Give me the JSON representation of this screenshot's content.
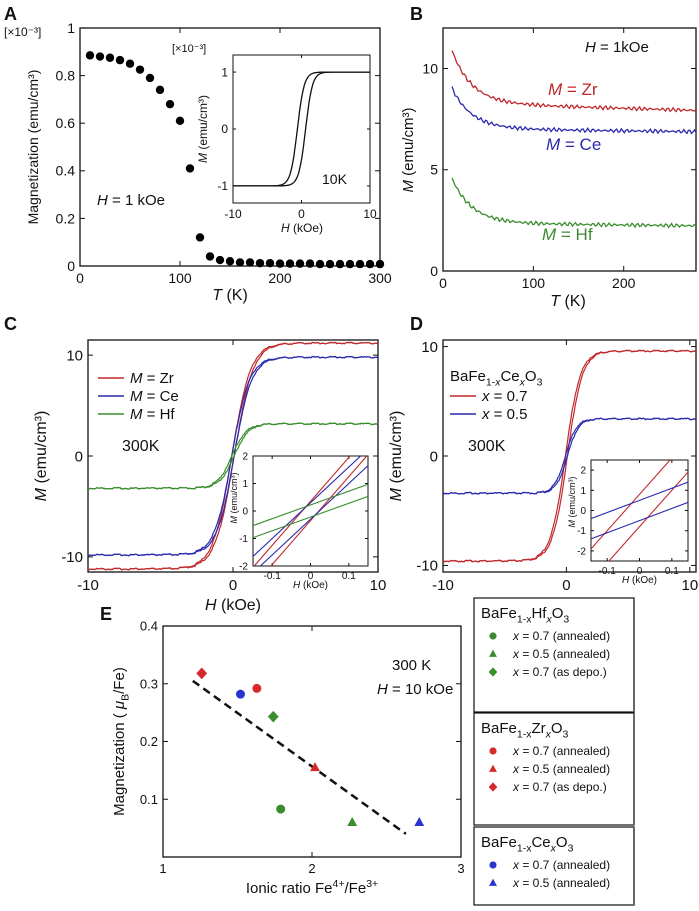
{
  "chart_data": [
    {
      "panel": "A",
      "type": "scatter",
      "scale_label": "[×10⁻³]",
      "ylabel": "Magnetization (emu/cm³)",
      "xlabel_var": "T",
      "xlabel_unit": " (K)",
      "xlim": [
        0,
        300
      ],
      "ylim": [
        0,
        1.0
      ],
      "xticks": [
        "0",
        "100",
        "200",
        "300"
      ],
      "xtick_vals": [
        0,
        100,
        200,
        300
      ],
      "yticks": [
        "0",
        "0.2",
        "0.4",
        "0.6",
        "0.8",
        "1"
      ],
      "ytick_vals": [
        0,
        0.2,
        0.4,
        0.6,
        0.8,
        1.0
      ],
      "annotation_var": "H",
      "annotation_rest": " = 1 kOe",
      "series": [
        {
          "name": "M(T)",
          "color": "#000000",
          "x": [
            10,
            20,
            30,
            40,
            50,
            60,
            70,
            80,
            90,
            100,
            110,
            120,
            130,
            140,
            150,
            160,
            170,
            180,
            190,
            200,
            210,
            220,
            230,
            240,
            250,
            260,
            270,
            280,
            290,
            300
          ],
          "y": [
            0.885,
            0.88,
            0.875,
            0.865,
            0.85,
            0.825,
            0.79,
            0.74,
            0.68,
            0.61,
            0.41,
            0.12,
            0.04,
            0.025,
            0.02,
            0.015,
            0.015,
            0.012,
            0.012,
            0.01,
            0.01,
            0.01,
            0.01,
            0.008,
            0.008,
            0.008,
            0.008,
            0.008,
            0.008,
            0.008
          ]
        }
      ],
      "inset": {
        "type": "line",
        "scale_label": "[×10⁻³]",
        "xlim": [
          -10,
          10
        ],
        "ylim": [
          -1.3,
          1.3
        ],
        "xticks": [
          "-10",
          "0",
          "10"
        ],
        "xtick_vals": [
          -10,
          0,
          10
        ],
        "yticks": [
          "-1",
          "0",
          "1"
        ],
        "ytick_vals": [
          -1,
          0,
          1
        ],
        "ylabel_var": "M",
        "ylabel_unit": " (emu/cm³)",
        "xlabel_var": "H",
        "xlabel_unit": " (kOe)",
        "annotation": "10K",
        "Ms": 1.0,
        "Hc": 0.6,
        "width": 1.0
      }
    },
    {
      "panel": "B",
      "type": "line",
      "ylabel_var": "M",
      "ylabel_unit": " (emu/cm³)",
      "xlabel_var": "T",
      "xlabel_unit": " (K)",
      "xlim": [
        0,
        280
      ],
      "ylim": [
        0,
        12
      ],
      "xticks": [
        "0",
        "100",
        "200"
      ],
      "xtick_vals": [
        0,
        100,
        200
      ],
      "yticks": [
        "0",
        "5",
        "10"
      ],
      "ytick_vals": [
        0,
        5,
        10
      ],
      "annotation_var": "H",
      "annotation_rest": " = 1kOe",
      "series": [
        {
          "name": "M = Zr",
          "label_var": "M",
          "label_rest": " = Zr",
          "color": "#c0282a",
          "base": 8.1,
          "amp": 2.6
        },
        {
          "name": "M = Ce",
          "label_var": "M",
          "label_rest": " = Ce",
          "color": "#2a2aaf",
          "base": 6.95,
          "amp": 2.0
        },
        {
          "name": "M = Hf",
          "label_var": "M",
          "label_rest": " = Hf",
          "color": "#3a8c2e",
          "base": 2.3,
          "amp": 2.2
        }
      ]
    },
    {
      "panel": "C",
      "type": "line",
      "ylabel_var": "M",
      "ylabel_unit": " (emu/cm³)",
      "xlabel_var": "H",
      "xlabel_unit": " (kOe)",
      "xlim": [
        -10,
        10
      ],
      "ylim": [
        -11.5,
        11.5
      ],
      "xticks": [
        "-10",
        "0",
        "10"
      ],
      "xtick_vals": [
        -10,
        0,
        10
      ],
      "yticks": [
        "-10",
        "0",
        "10"
      ],
      "ytick_vals": [
        -10,
        0,
        10
      ],
      "annotation": "300K",
      "legend": [
        {
          "var": "M",
          "rest": " = Zr",
          "color": "#c0282a"
        },
        {
          "var": "M",
          "rest": " = Ce",
          "color": "#2a2aaf"
        },
        {
          "var": "M",
          "rest": " = Hf",
          "color": "#3a8c2e"
        }
      ],
      "series": [
        {
          "name": "M = Zr",
          "color": "#c0282a",
          "Ms": 11.2,
          "width": 1.3
        },
        {
          "name": "M = Ce",
          "color": "#2a2aaf",
          "Ms": 9.8,
          "width": 1.2
        },
        {
          "name": "M = Hf",
          "color": "#3a8c2e",
          "Ms": 3.2,
          "width": 1.0
        }
      ],
      "inset": {
        "xlim": [
          -0.15,
          0.15
        ],
        "ylim": [
          -2,
          2
        ],
        "xticks": [
          "-0.1",
          "0",
          "0.1"
        ],
        "xtick_vals": [
          -0.1,
          0,
          0.1
        ],
        "yticks": [
          "-2",
          "-1",
          "0",
          "1",
          "2"
        ],
        "ytick_vals": [
          -2,
          -1,
          0,
          1,
          2
        ],
        "ylabel_var": "M",
        "ylabel_unit": " (emu/cm³)",
        "xlabel_var": "H",
        "xlabel_unit": " (kOe)",
        "loops": [
          {
            "color": "#c0282a",
            "slope": 16,
            "off": 0.35
          },
          {
            "color": "#2a2aaf",
            "slope": 13,
            "off": 0.3
          },
          {
            "color": "#3a8c2e",
            "slope": 5,
            "off": 0.22
          }
        ]
      }
    },
    {
      "panel": "D",
      "type": "line",
      "ylabel_var": "M",
      "ylabel_unit": " (emu/cm³)",
      "xlabel_var": "H",
      "xlabel_unit": " (kOe)",
      "xlim": [
        -10,
        10.5
      ],
      "ylim": [
        -10.6,
        10.6
      ],
      "xticks": [
        "-10",
        "0",
        "10"
      ],
      "xtick_vals": [
        -10,
        0,
        10
      ],
      "yticks": [
        "-10",
        "0",
        "10"
      ],
      "ytick_vals": [
        -10,
        0,
        10
      ],
      "annotation": "300K",
      "legend_title": "BaFe1-xCexO3",
      "legend": [
        {
          "var": "x",
          "rest": " = 0.7",
          "color": "#c0282a"
        },
        {
          "var": "x",
          "rest": " = 0.5",
          "color": "#2a2aaf"
        }
      ],
      "series": [
        {
          "name": "x = 0.7",
          "color": "#c0282a",
          "Ms": 9.6,
          "width": 1.2
        },
        {
          "name": "x = 0.5",
          "color": "#2a2aaf",
          "Ms": 3.4,
          "width": 0.9
        }
      ],
      "inset": {
        "xlim": [
          -0.15,
          0.15
        ],
        "ylim": [
          -2.5,
          2.5
        ],
        "xticks": [
          "-0.1",
          "0",
          "0.1"
        ],
        "xtick_vals": [
          -0.1,
          0,
          0.1
        ],
        "yticks": [
          "-2",
          "-1",
          "0",
          "1",
          "2"
        ],
        "ytick_vals": [
          -2,
          -1,
          0,
          1,
          2
        ],
        "ylabel_var": "M",
        "ylabel_unit": " (emu/cm³)",
        "xlabel_var": "H",
        "xlabel_unit": " (kOe)",
        "loops": [
          {
            "color": "#c0282a",
            "slope": 18,
            "off": 0.8
          },
          {
            "color": "#2a2aaf",
            "slope": 6,
            "off": 0.5
          }
        ]
      }
    },
    {
      "panel": "E",
      "type": "scatter",
      "ylabel_pre": "Magnetization ( ",
      "ylabel_mu": "μ",
      "ylabel_sub": "B",
      "ylabel_post": "/Fe)",
      "xlabel": "Ionic ratio Fe⁴⁺/Fe³⁺",
      "xlim": [
        1,
        3
      ],
      "ylim": [
        0,
        0.4
      ],
      "xticks": [
        "1",
        "2",
        "3"
      ],
      "xtick_vals": [
        1,
        2,
        3
      ],
      "yticks": [
        "0.1",
        "0.2",
        "0.3",
        "0.4"
      ],
      "ytick_vals": [
        0.1,
        0.2,
        0.3,
        0.4
      ],
      "annotation1": "300 K",
      "annotation2_var": "H",
      "annotation2_rest": " = 10 kOe",
      "fit_line": {
        "x": [
          1.2,
          2.63
        ],
        "y": [
          0.305,
          0.04
        ]
      },
      "points": [
        {
          "x": 1.26,
          "y": 0.318,
          "marker": "diamond",
          "color": "#d42a2a"
        },
        {
          "x": 1.52,
          "y": 0.282,
          "marker": "circle",
          "color": "#2a35d0"
        },
        {
          "x": 1.63,
          "y": 0.292,
          "marker": "circle",
          "color": "#d42a2a"
        },
        {
          "x": 1.74,
          "y": 0.243,
          "marker": "diamond",
          "color": "#3a8c2e"
        },
        {
          "x": 1.79,
          "y": 0.083,
          "marker": "circle",
          "color": "#3a8c2e"
        },
        {
          "x": 2.02,
          "y": 0.155,
          "marker": "triangle",
          "color": "#d42a2a"
        },
        {
          "x": 2.27,
          "y": 0.06,
          "marker": "triangle",
          "color": "#3a8c2e"
        },
        {
          "x": 2.72,
          "y": 0.06,
          "marker": "triangle",
          "color": "#2a35d0"
        }
      ],
      "legend_groups": [
        {
          "title_pre": "BaFe",
          "title_sub": "1-x",
          "title_el": "Hf",
          "title_x": "x",
          "title_o": "O",
          "title_o_sub": "3",
          "entries": [
            {
              "marker": "circle",
              "color": "#3a8c2e",
              "var": "x",
              "rest": " = 0.7 (annealed)"
            },
            {
              "marker": "triangle",
              "color": "#3a8c2e",
              "var": "x",
              "rest": " = 0.5 (annealed)"
            },
            {
              "marker": "diamond",
              "color": "#3a8c2e",
              "var": "x",
              "rest": " = 0.7 (as depo.)"
            }
          ]
        },
        {
          "title_pre": "BaFe",
          "title_sub": "1-x",
          "title_el": "Zr",
          "title_x": "x",
          "title_o": "O",
          "title_o_sub": "3",
          "entries": [
            {
              "marker": "circle",
              "color": "#d42a2a",
              "var": "x",
              "rest": " = 0.7 (annealed)"
            },
            {
              "marker": "triangle",
              "color": "#d42a2a",
              "var": "x",
              "rest": " = 0.5 (annealed)"
            },
            {
              "marker": "diamond",
              "color": "#d42a2a",
              "var": "x",
              "rest": " = 0.7 (as depo.)"
            }
          ]
        },
        {
          "title_pre": "BaFe",
          "title_sub": "1-x",
          "title_el": "Ce",
          "title_x": "x",
          "title_o": "O",
          "title_o_sub": "3",
          "entries": [
            {
              "marker": "circle",
              "color": "#2a35d0",
              "var": "x",
              "rest": " = 0.7 (annealed)"
            },
            {
              "marker": "triangle",
              "color": "#2a35d0",
              "var": "x",
              "rest": " = 0.5 (annealed)"
            }
          ]
        }
      ]
    }
  ]
}
